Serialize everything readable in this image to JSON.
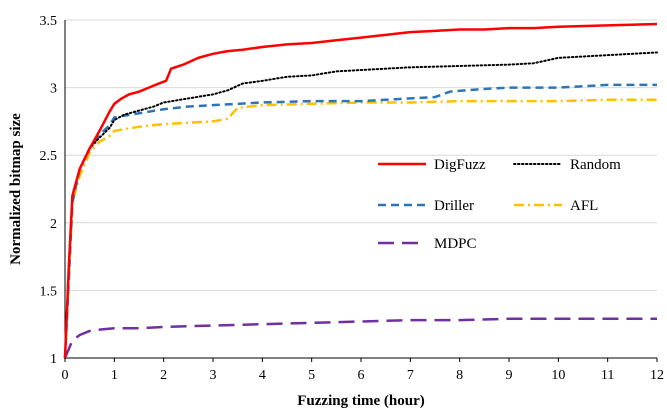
{
  "chart_data": {
    "type": "line",
    "title": "",
    "xlabel": "Fuzzing time (hour)",
    "ylabel": "Normalized bitmap size",
    "xlim": [
      0,
      12
    ],
    "ylim": [
      1,
      3.5
    ],
    "x_ticks": [
      "0",
      "1",
      "2",
      "3",
      "4",
      "5",
      "6",
      "7",
      "8",
      "9",
      "10",
      "11",
      "12"
    ],
    "y_ticks": [
      "1",
      "1.5",
      "2",
      "2.5",
      "3",
      "3.5"
    ],
    "grid": "horizontal",
    "legend": "inside right",
    "series": [
      {
        "name": "DigFuzz",
        "color": "#ff0000",
        "dash": "solid",
        "x": [
          0,
          0.08,
          0.15,
          0.3,
          0.5,
          0.7,
          0.8,
          0.9,
          1.0,
          1.15,
          1.3,
          1.5,
          1.7,
          1.9,
          2.05,
          2.15,
          2.4,
          2.7,
          3.0,
          3.3,
          3.6,
          4.0,
          4.5,
          5.0,
          5.5,
          6.0,
          6.5,
          7.0,
          7.5,
          8.0,
          8.5,
          9.0,
          9.5,
          10.0,
          11.0,
          12.0
        ],
        "y": [
          1.0,
          1.7,
          2.2,
          2.4,
          2.55,
          2.68,
          2.75,
          2.82,
          2.88,
          2.92,
          2.95,
          2.97,
          3.0,
          3.03,
          3.05,
          3.14,
          3.17,
          3.22,
          3.25,
          3.27,
          3.28,
          3.3,
          3.32,
          3.33,
          3.35,
          3.37,
          3.39,
          3.41,
          3.42,
          3.43,
          3.43,
          3.44,
          3.44,
          3.45,
          3.46,
          3.47
        ]
      },
      {
        "name": "Random",
        "color": "#000000",
        "dash": "dotted",
        "x": [
          0,
          0.08,
          0.15,
          0.3,
          0.5,
          0.7,
          0.9,
          1.0,
          1.2,
          1.5,
          1.8,
          2.0,
          2.5,
          3.0,
          3.3,
          3.6,
          4.0,
          4.5,
          5.0,
          5.5,
          6.0,
          7.0,
          8.0,
          9.0,
          9.5,
          10.0,
          11.0,
          12.0
        ],
        "y": [
          1.0,
          1.7,
          2.2,
          2.4,
          2.55,
          2.63,
          2.7,
          2.76,
          2.8,
          2.83,
          2.86,
          2.89,
          2.92,
          2.95,
          2.98,
          3.03,
          3.05,
          3.08,
          3.09,
          3.12,
          3.13,
          3.15,
          3.16,
          3.17,
          3.18,
          3.22,
          3.24,
          3.26
        ]
      },
      {
        "name": "Driller",
        "color": "#2e75b6",
        "dash": "dashed",
        "x": [
          0,
          0.08,
          0.15,
          0.3,
          0.5,
          0.7,
          0.9,
          1.0,
          1.5,
          2.0,
          2.5,
          3.0,
          4.0,
          5.0,
          6.0,
          7.0,
          7.5,
          7.8,
          8.5,
          9.0,
          10.0,
          10.5,
          11.0,
          12.0
        ],
        "y": [
          1.0,
          1.6,
          2.15,
          2.4,
          2.55,
          2.65,
          2.72,
          2.78,
          2.81,
          2.84,
          2.86,
          2.87,
          2.89,
          2.9,
          2.9,
          2.92,
          2.93,
          2.97,
          2.99,
          3.0,
          3.0,
          3.01,
          3.02,
          3.02
        ]
      },
      {
        "name": "AFL",
        "color": "#ffc000",
        "dash": "dashdot",
        "x": [
          0,
          0.08,
          0.15,
          0.3,
          0.5,
          0.7,
          0.9,
          1.0,
          1.5,
          2.0,
          2.5,
          3.0,
          3.3,
          3.5,
          4.0,
          5.0,
          6.0,
          7.0,
          8.0,
          9.0,
          10.0,
          11.0,
          12.0
        ],
        "y": [
          1.0,
          1.6,
          2.15,
          2.35,
          2.52,
          2.6,
          2.64,
          2.68,
          2.71,
          2.73,
          2.74,
          2.75,
          2.77,
          2.85,
          2.87,
          2.88,
          2.89,
          2.89,
          2.9,
          2.9,
          2.9,
          2.91,
          2.91
        ]
      },
      {
        "name": "MDPC",
        "color": "#7030a0",
        "dash": "longdash",
        "x": [
          0,
          0.15,
          0.3,
          0.5,
          0.7,
          1.0,
          1.5,
          2.0,
          3.0,
          4.0,
          5.0,
          6.0,
          7.0,
          8.0,
          9.0,
          10.0,
          11.0,
          12.0
        ],
        "y": [
          1.0,
          1.13,
          1.17,
          1.2,
          1.21,
          1.22,
          1.22,
          1.23,
          1.24,
          1.25,
          1.26,
          1.27,
          1.28,
          1.28,
          1.29,
          1.29,
          1.29,
          1.29
        ]
      }
    ]
  }
}
